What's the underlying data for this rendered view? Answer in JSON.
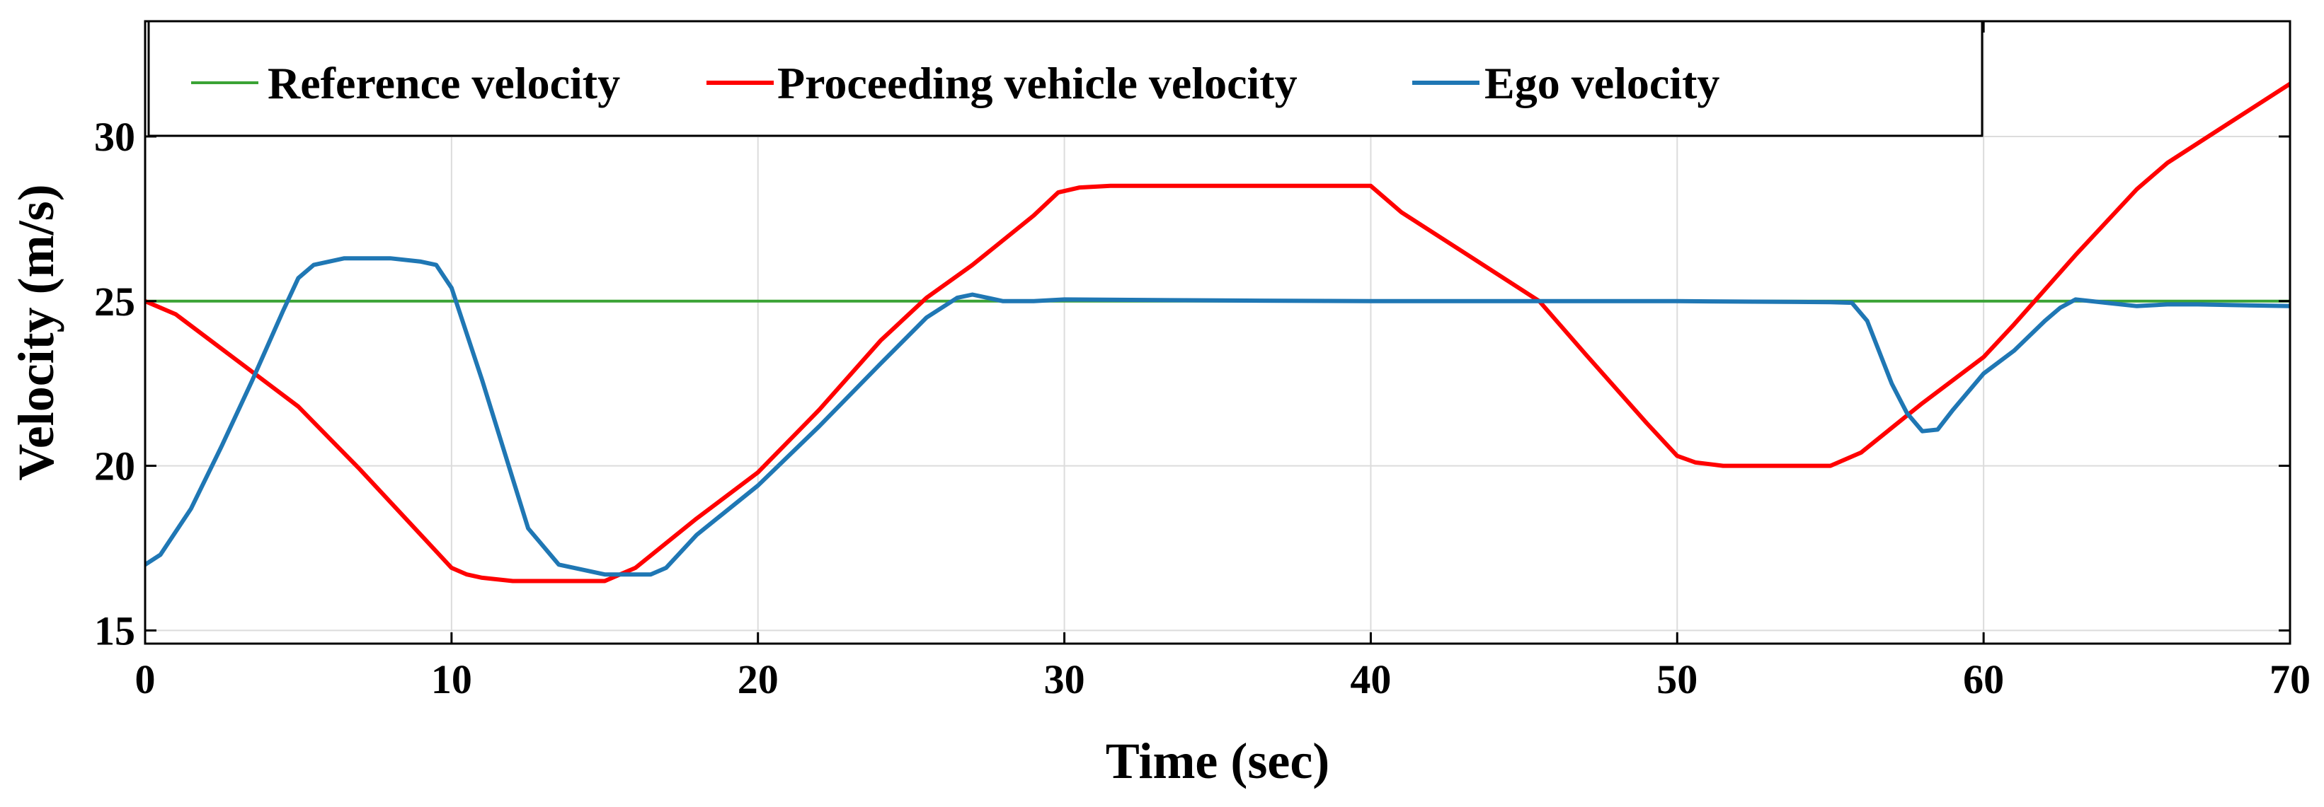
{
  "chart_data": {
    "type": "line",
    "title": "",
    "xlabel": "Time (sec)",
    "ylabel": "Velocity (m/s)",
    "xlim": [
      0,
      70
    ],
    "ylim": [
      14.6,
      33.5
    ],
    "xticks": [
      0,
      10,
      20,
      30,
      40,
      50,
      60,
      70
    ],
    "yticks": [
      15,
      20,
      25,
      30
    ],
    "grid": true,
    "legend_position": "top-left",
    "series": [
      {
        "name": "Reference velocity",
        "color": "#3aa335",
        "x": [
          0,
          70
        ],
        "y": [
          25,
          25
        ]
      },
      {
        "name": "Proceeding vehicle velocity",
        "color": "#ff0000",
        "x": [
          0,
          1,
          3,
          5,
          7,
          9,
          10,
          10.5,
          11,
          12,
          15,
          16,
          18,
          20,
          22,
          24,
          25.5,
          27,
          29,
          29.8,
          30.5,
          31.5,
          33,
          35,
          38,
          39.5,
          40,
          41,
          43,
          45.5,
          47,
          49,
          50,
          50.6,
          51.5,
          53,
          55,
          56,
          58,
          60,
          61,
          63,
          65,
          66,
          68,
          70
        ],
        "y": [
          25,
          24.6,
          23.2,
          21.8,
          19.9,
          17.9,
          16.9,
          16.7,
          16.6,
          16.5,
          16.5,
          16.9,
          18.4,
          19.8,
          21.7,
          23.8,
          25.1,
          26.1,
          27.6,
          28.3,
          28.45,
          28.5,
          28.5,
          28.5,
          28.5,
          28.5,
          28.5,
          27.7,
          26.5,
          25,
          23.4,
          21.3,
          20.3,
          20.1,
          20.0,
          20.0,
          20.0,
          20.4,
          21.9,
          23.3,
          24.3,
          26.4,
          28.4,
          29.2,
          30.4,
          31.6
        ]
      },
      {
        "name": "Ego velocity",
        "color": "#1f77b4",
        "x": [
          0,
          0.5,
          1.5,
          2.5,
          3.5,
          4.5,
          5,
          5.5,
          6.5,
          8,
          9,
          9.5,
          10,
          11,
          12,
          12.5,
          13.5,
          15,
          16,
          16.5,
          17,
          18,
          20,
          22,
          24,
          25.5,
          26.5,
          27,
          28,
          29,
          30,
          35,
          40,
          45,
          50,
          55,
          55.7,
          56.2,
          57,
          57.5,
          58,
          58.5,
          59,
          60,
          61,
          62,
          62.5,
          63,
          64,
          65,
          66,
          67,
          70
        ],
        "y": [
          17,
          17.3,
          18.7,
          20.6,
          22.6,
          24.7,
          25.7,
          26.1,
          26.3,
          26.3,
          26.2,
          26.1,
          25.4,
          22.6,
          19.6,
          18.1,
          17.0,
          16.7,
          16.7,
          16.7,
          16.9,
          17.9,
          19.4,
          21.2,
          23.1,
          24.5,
          25.1,
          25.2,
          25.0,
          25.0,
          25.05,
          25.02,
          25.0,
          25.0,
          25.0,
          24.97,
          24.95,
          24.4,
          22.5,
          21.6,
          21.05,
          21.1,
          21.7,
          22.8,
          23.5,
          24.4,
          24.8,
          25.05,
          24.95,
          24.85,
          24.9,
          24.9,
          24.85
        ]
      }
    ]
  }
}
